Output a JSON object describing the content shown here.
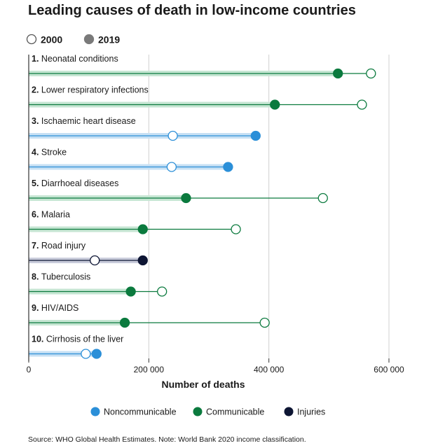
{
  "chart_data": {
    "type": "dumbbell",
    "title": "Leading causes of death in low-income countries",
    "legend_years": [
      {
        "label": "2000",
        "style": "hollow"
      },
      {
        "label": "2019",
        "style": "filled"
      }
    ],
    "xlabel": "Number of deaths",
    "xlim": [
      0,
      600000
    ],
    "xticks": [
      {
        "value": 0,
        "label": "0"
      },
      {
        "value": 200000,
        "label": "200 000"
      },
      {
        "value": 400000,
        "label": "400 000"
      },
      {
        "value": 600000,
        "label": "600 000"
      }
    ],
    "categories": [
      {
        "rank": "1.",
        "name": "Neonatal conditions",
        "group": "Communicable",
        "v2000": 570000,
        "v2019": 515000
      },
      {
        "rank": "2.",
        "name": "Lower respiratory infections",
        "group": "Communicable",
        "v2000": 555000,
        "v2019": 410000
      },
      {
        "rank": "3.",
        "name": "Ischaemic heart disease",
        "group": "Noncommunicable",
        "v2000": 240000,
        "v2019": 378000
      },
      {
        "rank": "4.",
        "name": "Stroke",
        "group": "Noncommunicable",
        "v2000": 238000,
        "v2019": 332000
      },
      {
        "rank": "5.",
        "name": "Diarrhoeal diseases",
        "group": "Communicable",
        "v2000": 490000,
        "v2019": 262000
      },
      {
        "rank": "6.",
        "name": "Malaria",
        "group": "Communicable",
        "v2000": 345000,
        "v2019": 190000
      },
      {
        "rank": "7.",
        "name": "Road injury",
        "group": "Injuries",
        "v2000": 110000,
        "v2019": 190000
      },
      {
        "rank": "8.",
        "name": "Tuberculosis",
        "group": "Communicable",
        "v2000": 222000,
        "v2019": 170000
      },
      {
        "rank": "9.",
        "name": "HIV/AIDS",
        "group": "Communicable",
        "v2000": 393000,
        "v2019": 160000
      },
      {
        "rank": "10.",
        "name": "Cirrhosis of the liver",
        "group": "Noncommunicable",
        "v2000": 95000,
        "v2019": 113000
      }
    ],
    "groups": [
      {
        "name": "Noncommunicable",
        "color": "#2b8fd8",
        "band": "#c7e0f4"
      },
      {
        "name": "Communicable",
        "color": "#0b7a3e",
        "band": "#c6e6d3"
      },
      {
        "name": "Injuries",
        "color": "#0d1533",
        "band": "#c9ccdb"
      }
    ],
    "source": "Source: WHO Global Health Estimates. Note: World Bank 2020 income classification."
  }
}
